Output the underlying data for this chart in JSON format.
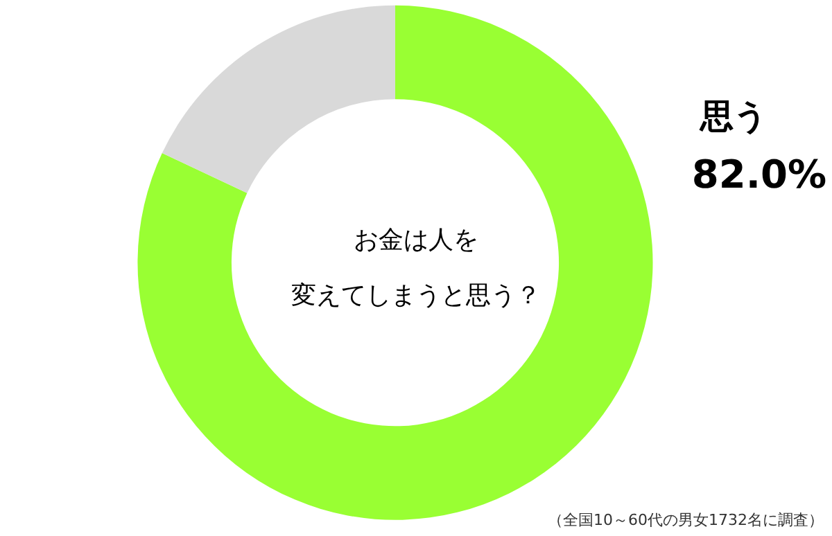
{
  "chart_data": {
    "type": "donut",
    "title": "お金は人を変えてしまうと思う？",
    "categories": [
      "思う",
      null
    ],
    "values": [
      82.0,
      18.0
    ],
    "colors": [
      "#99ff33",
      "#d9d9d9"
    ],
    "value_labels": [
      "82.0%",
      null
    ],
    "legend": false,
    "annotations": [
      "（全国10～60代の男女1732名に調査）"
    ]
  }
}
